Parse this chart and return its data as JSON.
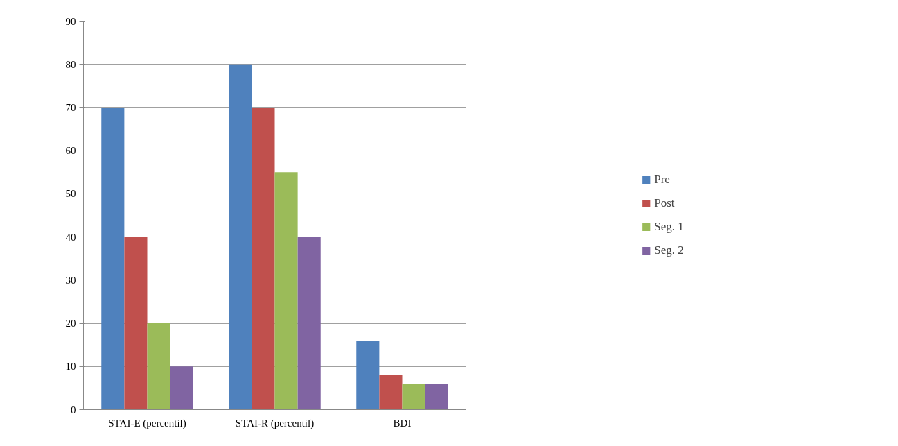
{
  "chart_data": {
    "type": "bar",
    "categories": [
      "STAI-E (percentil)",
      "STAI-R (percentil)",
      "BDI"
    ],
    "series": [
      {
        "name": "Pre",
        "color": "#4f81bd",
        "values": [
          70,
          80,
          16
        ]
      },
      {
        "name": "Post",
        "color": "#c0504d",
        "values": [
          40,
          70,
          8
        ]
      },
      {
        "name": "Seg. 1",
        "color": "#9bbb59",
        "values": [
          20,
          55,
          6
        ]
      },
      {
        "name": "Seg. 2",
        "color": "#8064a2",
        "values": [
          10,
          40,
          6
        ]
      }
    ],
    "ylim": [
      0,
      90
    ],
    "yticks": [
      0,
      10,
      20,
      30,
      40,
      50,
      60,
      70,
      80,
      90
    ],
    "grid": "y",
    "legend": "right"
  }
}
